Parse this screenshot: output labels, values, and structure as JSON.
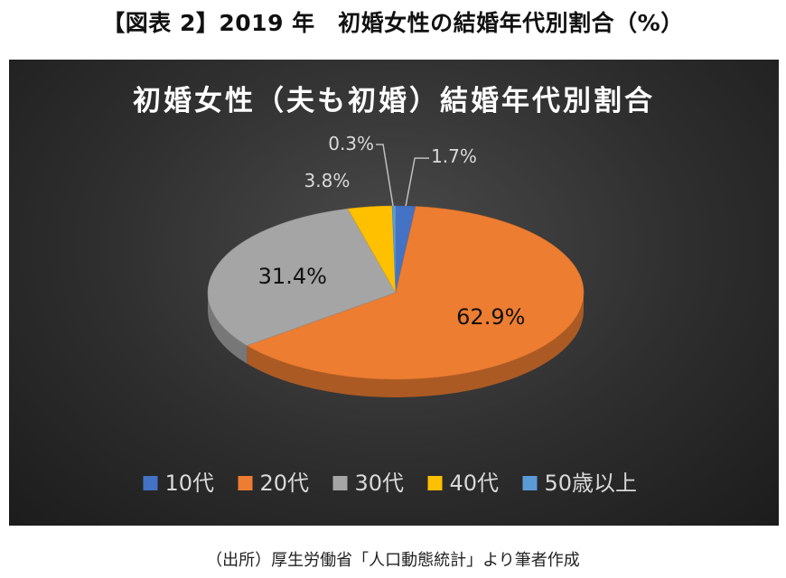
{
  "page": {
    "title": "【図表 2】2019 年　初婚女性の結婚年代別割合（%）",
    "source": "（出所）厚生労働省「人口動態統計」より筆者作成"
  },
  "chart_data": {
    "type": "pie",
    "title": "初婚女性（夫も初婚）結婚年代別割合",
    "legend_position": "bottom",
    "slices": [
      {
        "name": "10代",
        "value": 1.7,
        "label": "1.7%",
        "color": "#4472c4"
      },
      {
        "name": "20代",
        "value": 62.9,
        "label": "62.9%",
        "color": "#ed7d31"
      },
      {
        "name": "30代",
        "value": 31.4,
        "label": "31.4%",
        "color": "#a5a5a5"
      },
      {
        "name": "40代",
        "value": 3.8,
        "label": "3.8%",
        "color": "#ffc000"
      },
      {
        "name": "50歳以上",
        "value": 0.3,
        "label": "0.3%",
        "color": "#5b9bd5"
      }
    ]
  }
}
